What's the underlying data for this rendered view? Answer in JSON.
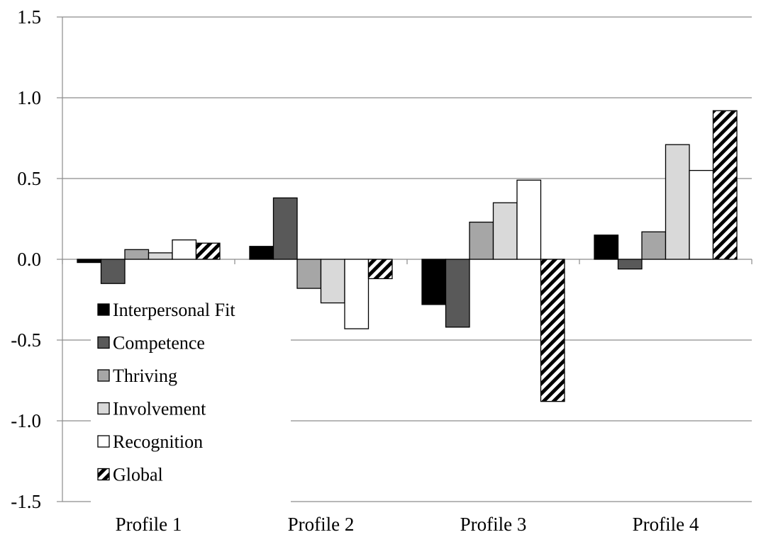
{
  "chart_data": {
    "type": "bar",
    "title": "",
    "xlabel": "",
    "ylabel": "",
    "ylim": [
      -1.5,
      1.5
    ],
    "yticks": [
      "1.5",
      "1.0",
      "0.5",
      "0.0",
      "-0.5",
      "-1.0",
      "-1.5"
    ],
    "ytick_values": [
      1.5,
      1.0,
      0.5,
      0.0,
      -0.5,
      -1.0,
      -1.5
    ],
    "grid": "horizontal",
    "legend_position": "bottom-left (inside plot)",
    "categories": [
      "Profile 1",
      "Profile 2",
      "Profile 3",
      "Profile 4"
    ],
    "series": [
      {
        "name": "Interpersonal Fit",
        "fill": "#000000",
        "pattern": "solid",
        "values": [
          -0.02,
          0.08,
          -0.28,
          0.15
        ]
      },
      {
        "name": "Competence",
        "fill": "#595959",
        "pattern": "solid",
        "values": [
          -0.15,
          0.38,
          -0.42,
          -0.06
        ]
      },
      {
        "name": "Thriving",
        "fill": "#a6a6a6",
        "pattern": "solid",
        "values": [
          0.06,
          -0.18,
          0.23,
          0.17
        ]
      },
      {
        "name": "Involvement",
        "fill": "#d9d9d9",
        "pattern": "solid",
        "values": [
          0.04,
          -0.27,
          0.35,
          0.71
        ]
      },
      {
        "name": "Recognition",
        "fill": "#ffffff",
        "pattern": "solid",
        "values": [
          0.12,
          -0.43,
          0.49,
          0.55
        ]
      },
      {
        "name": "Global",
        "fill": "#ffffff",
        "pattern": "diagonal-stripes",
        "values": [
          0.1,
          -0.12,
          -0.88,
          0.92
        ]
      }
    ]
  }
}
